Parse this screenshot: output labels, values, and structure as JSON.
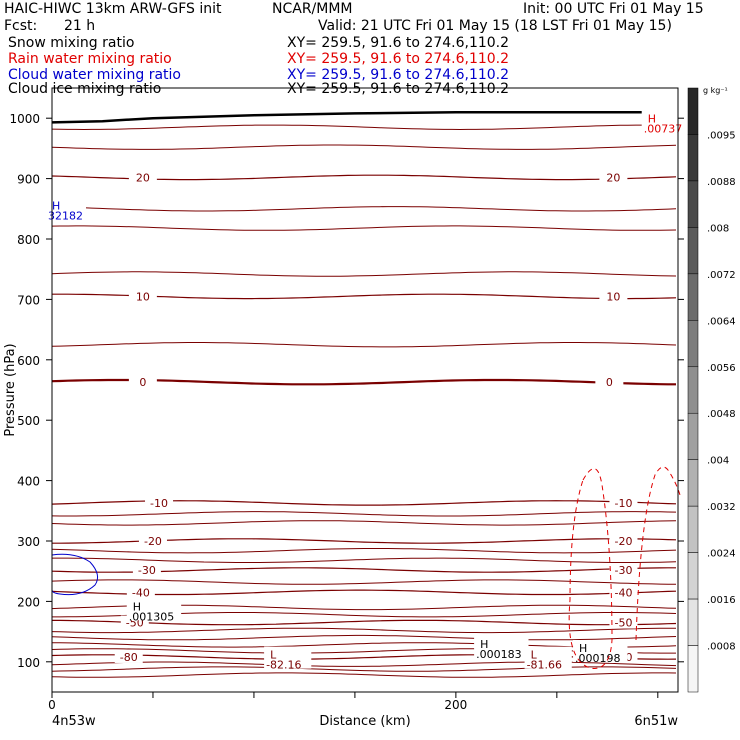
{
  "header": {
    "left_title": "HAIC-HIWC 13km ARW-GFS init",
    "center_title": "NCAR/MMM",
    "init": "Init: 00 UTC Fri 01 May 15",
    "fcst_label": "Fcst:",
    "fcst_value": "21 h",
    "valid": "Valid: 21 UTC Fri 01 May 15 (18 LST Fri 01 May 15)",
    "fields": [
      {
        "name": "Snow mixing ratio",
        "xy": "XY= 259.5, 91.6 to 274.6,110.2",
        "color": "#000000"
      },
      {
        "name": "Rain water mixing ratio",
        "xy": "XY= 259.5, 91.6 to 274.6,110.2",
        "color": "#e00000"
      },
      {
        "name": "Cloud water mixing ratio",
        "xy": "XY= 259.5, 91.6 to 274.6,110.2",
        "color": "#0000cc"
      },
      {
        "name": "Cloud ice mixing ratio",
        "xy": "XY= 259.5, 91.6 to 274.6,110.2",
        "color": "#000000"
      }
    ]
  },
  "chart_data": {
    "type": "line",
    "subtype": "vertical cross-section contour",
    "xlabel": "Distance (km)",
    "ylabel": "Pressure (hPa)",
    "xlim": [
      0,
      310
    ],
    "ylim": [
      1050,
      50
    ],
    "x_ticks": [
      0,
      200
    ],
    "y_ticks": [
      100,
      200,
      300,
      400,
      500,
      600,
      700,
      800,
      900,
      1000
    ],
    "x_endpoint_labels": [
      "4n53w",
      "6n51w"
    ],
    "colorbar": {
      "unit": "g kg⁻¹",
      "labels": [
        ".0095",
        ".0088",
        ".008",
        ".0072",
        ".0064",
        ".0056",
        ".0048",
        ".004",
        ".0032",
        ".0024",
        ".0016",
        ".0008"
      ]
    },
    "temperature_isotherms": {
      "color": "#7a0000",
      "labeled": [
        {
          "value": -80,
          "pressure": 108
        },
        {
          "value": -50,
          "pressure": 165
        },
        {
          "value": -40,
          "pressure": 215
        },
        {
          "value": -30,
          "pressure": 252
        },
        {
          "value": -20,
          "pressure": 300
        },
        {
          "value": -10,
          "pressure": 363
        },
        {
          "value": 0,
          "pressure": 563
        },
        {
          "value": 10,
          "pressure": 705
        },
        {
          "value": 20,
          "pressure": 902
        }
      ],
      "unlabeled_pressures": [
        78,
        88,
        96,
        118,
        128,
        140,
        152,
        178,
        190,
        232,
        268,
        284,
        330,
        345,
        625,
        742,
        818,
        850,
        952,
        985
      ]
    },
    "ground": {
      "x": [
        0,
        25,
        50,
        100,
        150,
        200,
        250,
        310
      ],
      "pressure": [
        993,
        995,
        1000,
        1005,
        1008,
        1010,
        1010,
        1010
      ]
    },
    "annotations": [
      {
        "text": "L",
        "value": "-82.16",
        "x": 108,
        "pressure": 92,
        "color": "#7a0000"
      },
      {
        "text": "L",
        "value": "-81.66",
        "x": 237,
        "pressure": 92,
        "color": "#7a0000"
      },
      {
        "text": "H",
        "value": ".000183",
        "x": 212,
        "pressure": 110,
        "color": "#000000"
      },
      {
        "text": "H",
        "value": ".000198",
        "x": 261,
        "pressure": 103,
        "color": "#000000"
      },
      {
        "text": "H",
        "value": ".001305",
        "x": 40,
        "pressure": 172,
        "color": "#000000"
      },
      {
        "text": "H",
        "value": ".00737",
        "x": 295,
        "pressure": 980,
        "color": "#e00000"
      },
      {
        "text": "H",
        "value": "32182",
        "x": 0,
        "pressure": 836,
        "color": "#0000cc"
      }
    ]
  }
}
